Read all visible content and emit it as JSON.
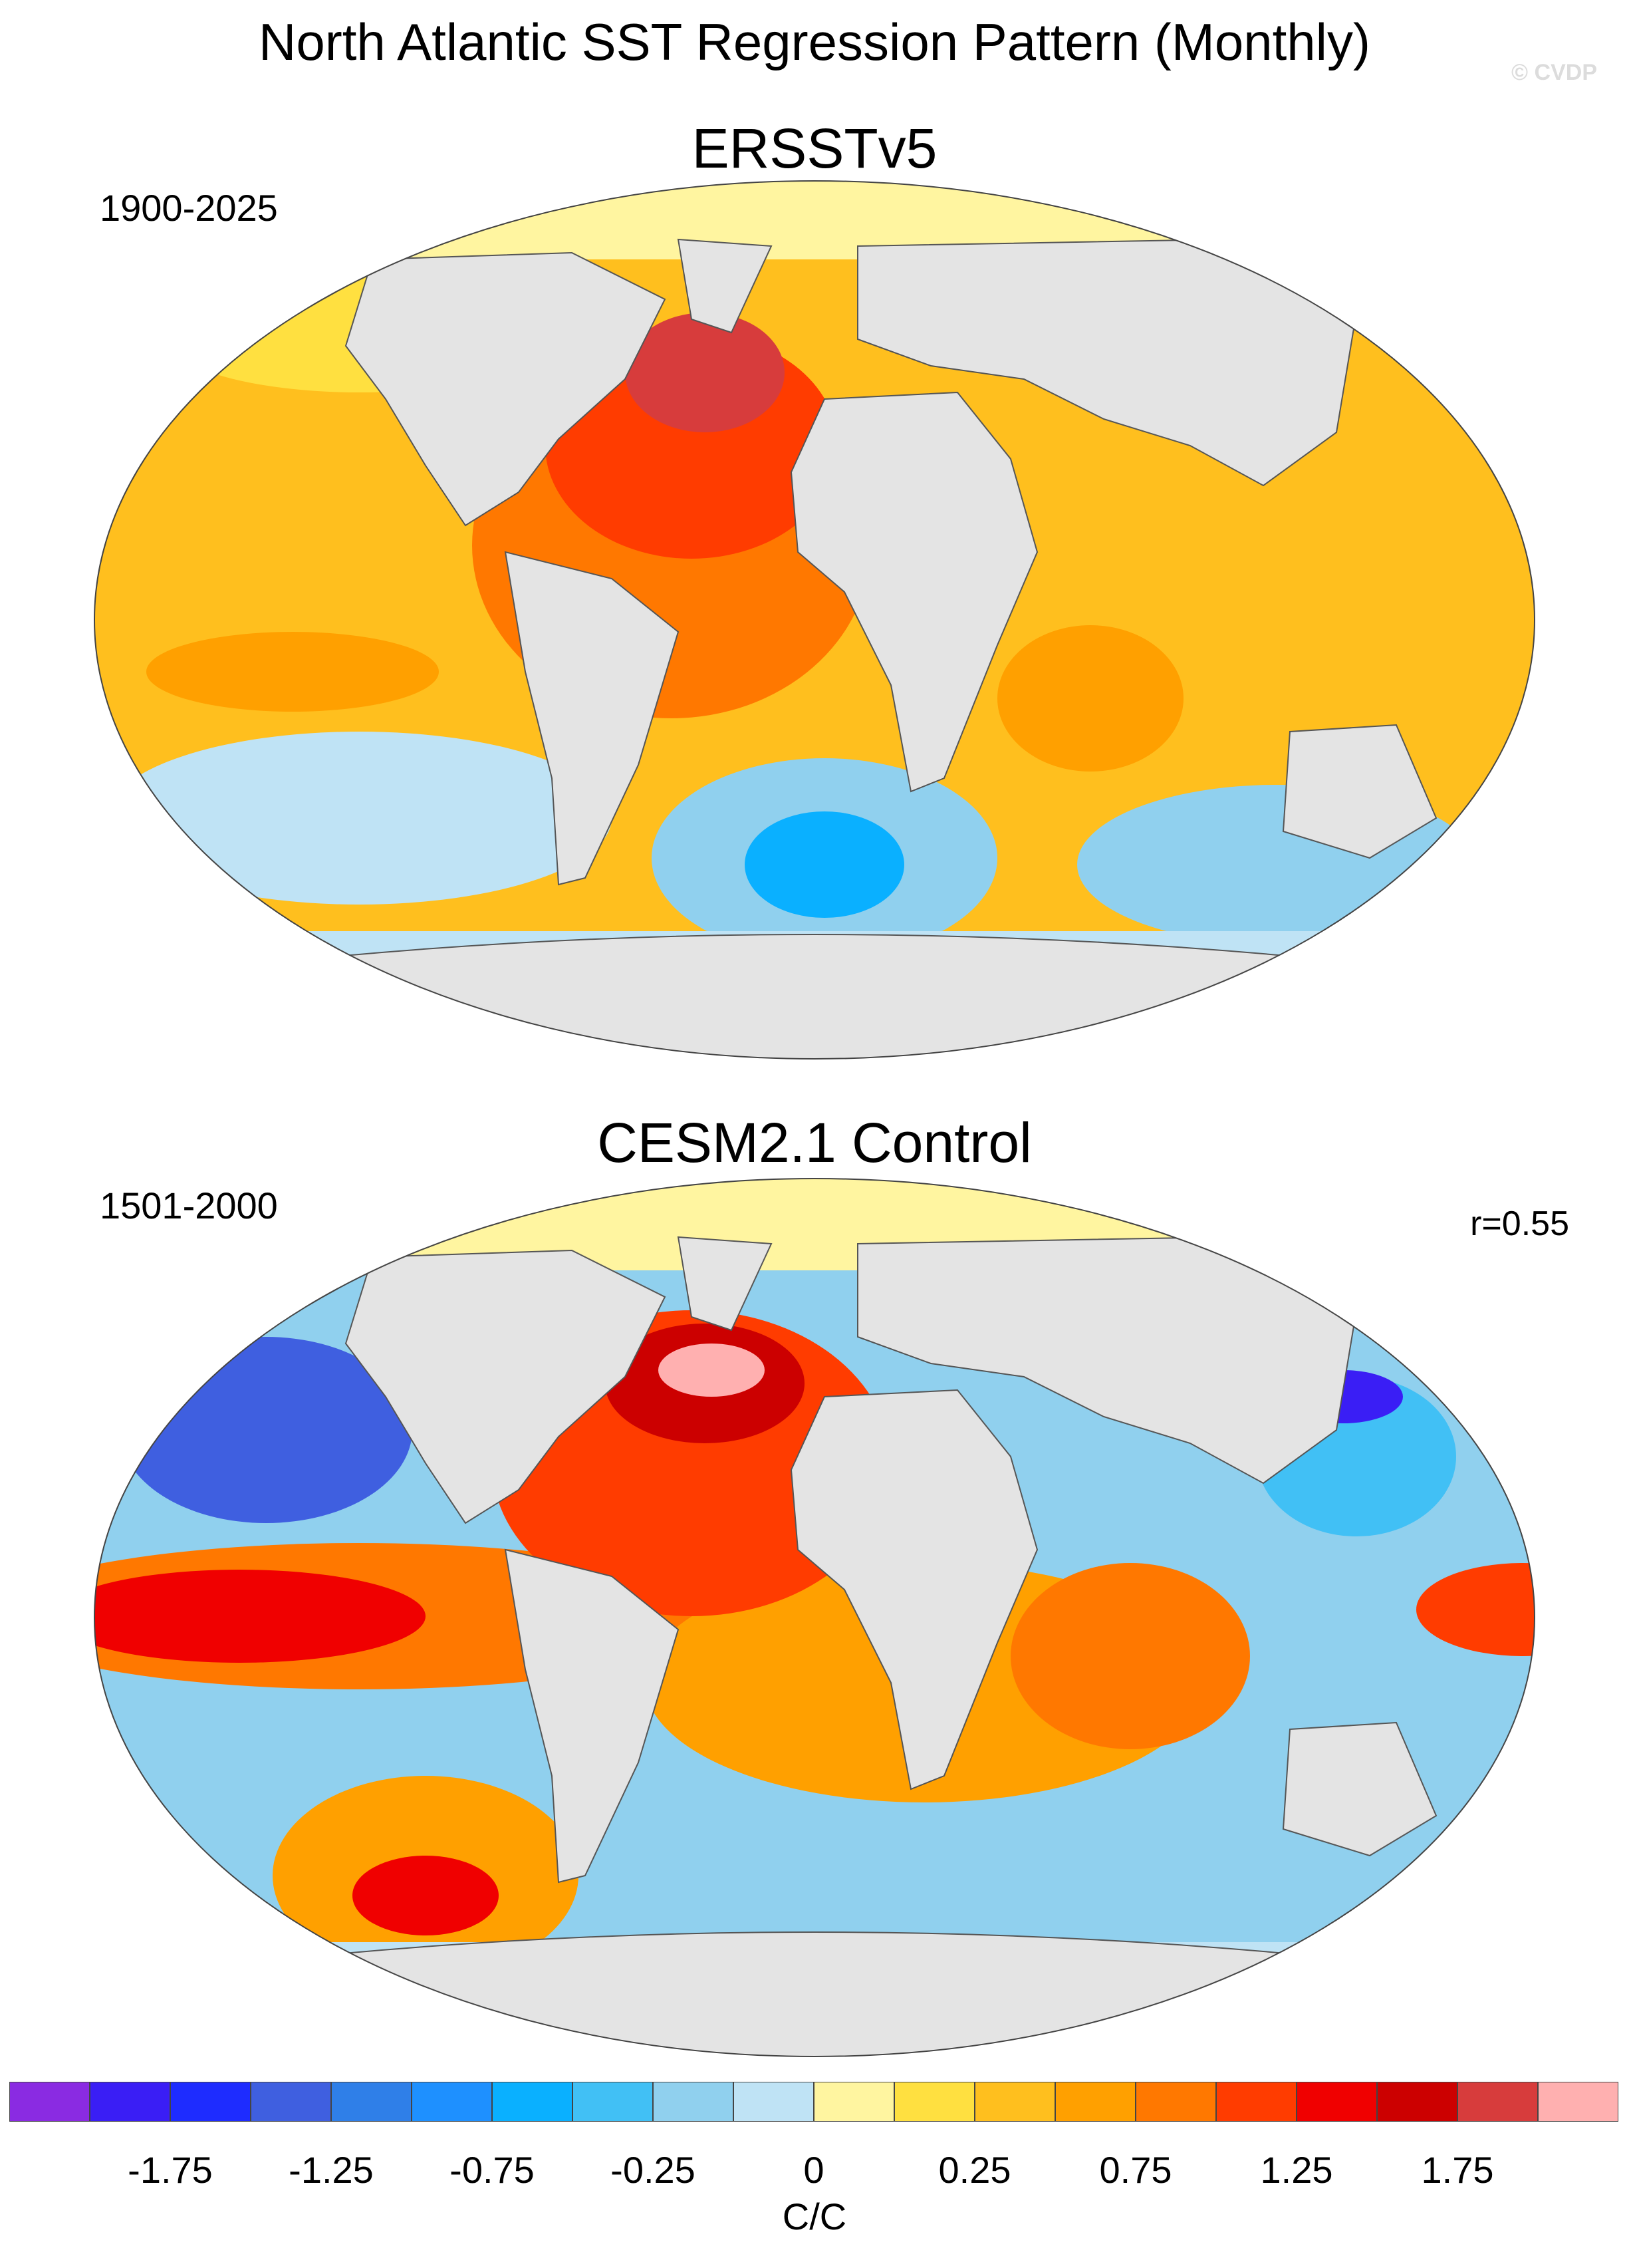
{
  "title": "North Atlantic SST Regression Pattern (Monthly)",
  "watermark": "© CVDP",
  "panels": [
    {
      "title": "ERSSTv5",
      "period": "1900-2025",
      "corr": ""
    },
    {
      "title": "CESM2.1 Control",
      "period": "1501-2000",
      "corr": "r=0.55"
    }
  ],
  "colorbar": {
    "colors": [
      "#8a2be2",
      "#3a1ef5",
      "#1e2cff",
      "#3f5fe0",
      "#2f7fe8",
      "#1e90ff",
      "#0ab0ff",
      "#41c0f5",
      "#90d0ee",
      "#bfe3f5",
      "#fff5a0",
      "#ffe040",
      "#ffbf1e",
      "#ffa000",
      "#ff7800",
      "#ff3c00",
      "#f00000",
      "#cc0000",
      "#d73c3c",
      "#ffb0b0"
    ],
    "tick_labels": [
      "-1.75",
      "-1.25",
      "-0.75",
      "-0.25",
      "0",
      "0.25",
      "0.75",
      "1.25",
      "1.75"
    ],
    "units": "C/C"
  },
  "land_color": "#e4e4e4"
}
